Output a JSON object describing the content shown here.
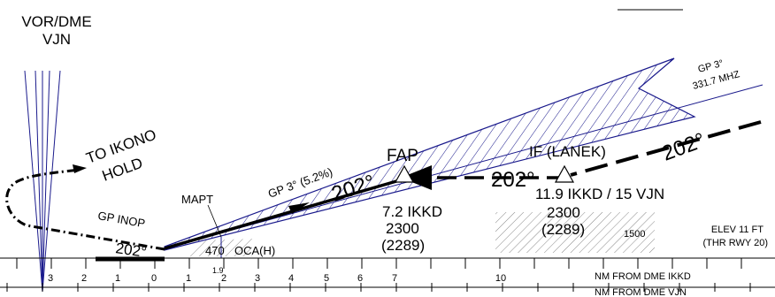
{
  "navaid": {
    "type": "VOR/DME",
    "ident": "VJN"
  },
  "hold": {
    "line1": "TO IKONO",
    "line2": "HOLD"
  },
  "missed": {
    "label": "GP INOP",
    "track": "202°"
  },
  "mapt": "MAPT",
  "mapt_distance": "1.9",
  "glidepath": {
    "label": "GP 3° (5.2%)",
    "angle": "GP 3°",
    "freq": "331.7 MHZ"
  },
  "fap": {
    "name": "FAP",
    "track": "202°",
    "distance": "7.2 IKKD",
    "altitude": "2300",
    "height": "(2289)"
  },
  "if": {
    "name": "IF (LANEK)",
    "track_in": "202°",
    "track": "202°",
    "distance": "11.9 IKKD / 15 VJN",
    "altitude": "2300",
    "height": "(2289)"
  },
  "msa": "1500",
  "oca": {
    "value": "470",
    "label": "OCA(H)"
  },
  "elevation": {
    "line1": "ELEV 11 FT",
    "line2": "(THR RWY 20)"
  },
  "scale": {
    "ikkd_labels": [
      "3",
      "2",
      "1",
      "0",
      "1",
      "2",
      "3",
      "4",
      "5",
      "6",
      "7",
      "10"
    ],
    "ikkd_caption": "NM FROM DME IKKD",
    "vjn_caption": "NM FROM DME VJN"
  }
}
